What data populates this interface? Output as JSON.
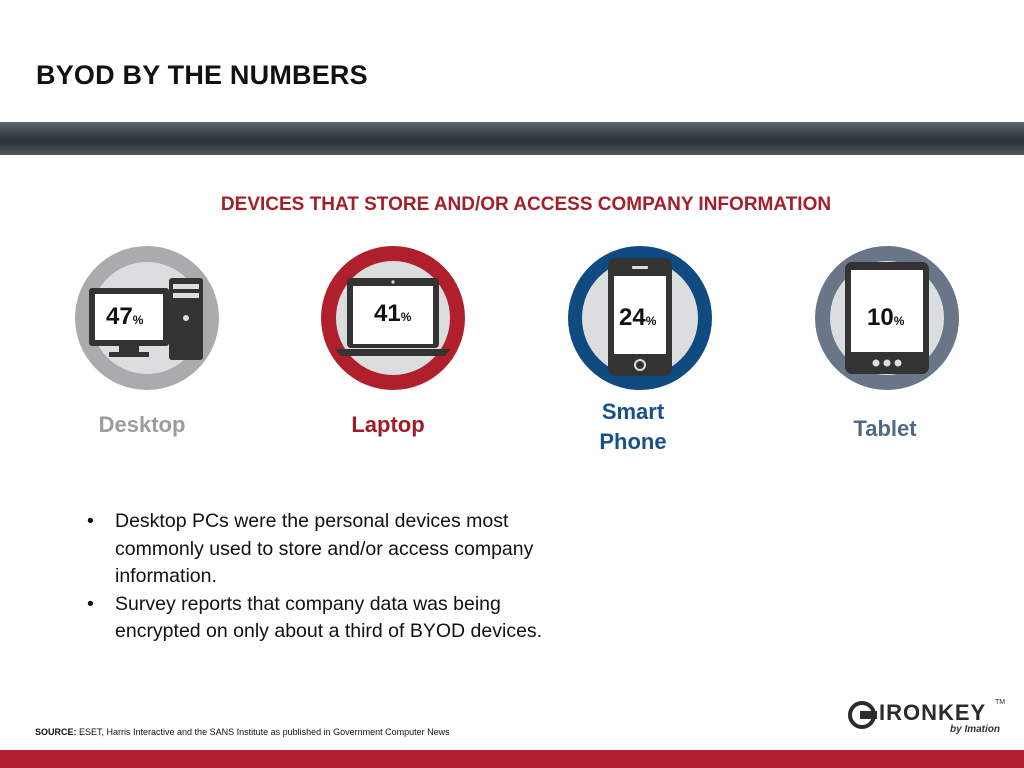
{
  "slide": {
    "title": "BYOD BY THE NUMBERS",
    "subtitle": "DEVICES THAT STORE AND/OR ACCESS COMPANY INFORMATION"
  },
  "devices": [
    {
      "label": "Desktop",
      "value": "47",
      "unit": "%",
      "icon": "desktop-icon",
      "ring_color": "#a9abad",
      "label_color": "#9a9c9e"
    },
    {
      "label": "Laptop",
      "value": "41",
      "unit": "%",
      "icon": "laptop-icon",
      "ring_color": "#b0202c",
      "label_color": "#9c1c27"
    },
    {
      "label_line1": "Smart",
      "label_line2": "Phone",
      "value": "24",
      "unit": "%",
      "icon": "smartphone-icon",
      "ring_color": "#0f4a80",
      "label_color": "#17508a"
    },
    {
      "label": "Tablet",
      "value": "10",
      "unit": "%",
      "icon": "tablet-icon",
      "ring_color": "#697688",
      "label_color": "#4f6a85"
    }
  ],
  "bullets": [
    "Desktop PCs were the personal devices most commonly used to store and/or access company information.",
    "Survey reports that company data was being encrypted on only about a third of BYOD devices."
  ],
  "source": {
    "prefix": "SOURCE:",
    "text": " ESET, Harris Interactive and the SANS Institute as published in Government Computer News"
  },
  "logo": {
    "word": "IRONKEY",
    "tm": "TM",
    "sub": "by Imation"
  },
  "colors": {
    "accent_red": "#a3202a",
    "footer_red": "#b01f2e",
    "band_dark": "#3a4249"
  }
}
